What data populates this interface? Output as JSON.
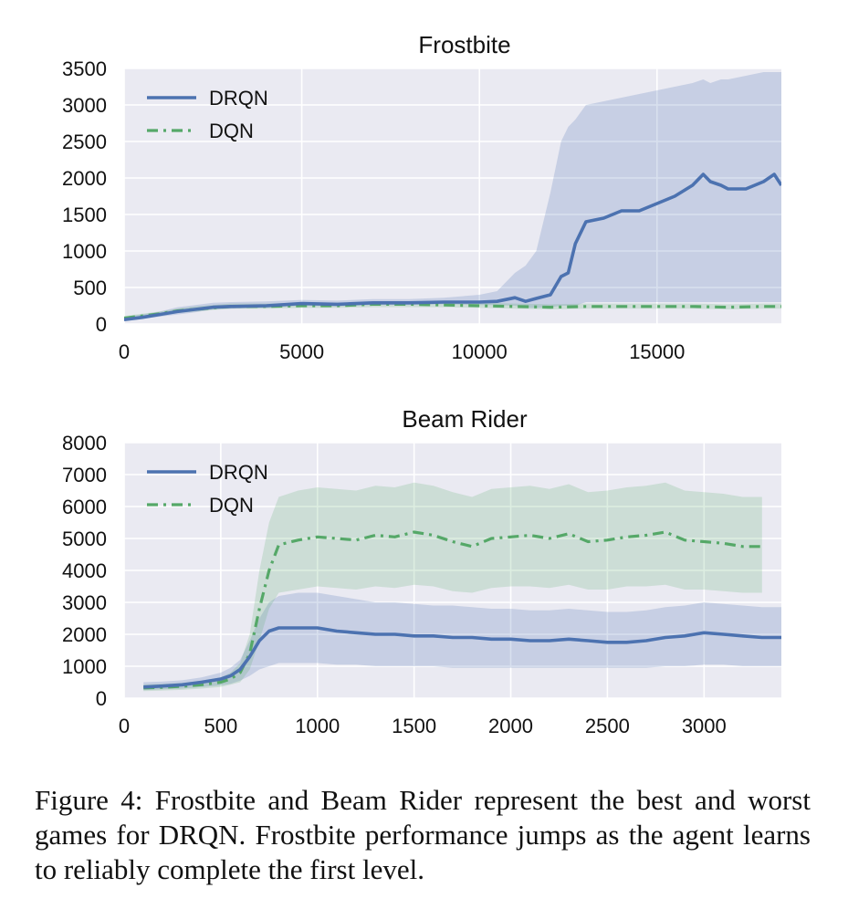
{
  "colors": {
    "background": "#eaeaf2",
    "grid": "#ffffff",
    "drqn": "#4c72b0",
    "dqn": "#55a868"
  },
  "chart_data": [
    {
      "type": "line",
      "title": "Frostbite",
      "xlabel": "",
      "ylabel": "",
      "xlim": [
        0,
        18500
      ],
      "ylim": [
        0,
        3500
      ],
      "xticks": [
        0,
        5000,
        10000,
        15000
      ],
      "yticks": [
        0,
        500,
        1000,
        1500,
        2000,
        2500,
        3000,
        3500
      ],
      "grid": true,
      "legend": {
        "placement": "top-left"
      },
      "series": [
        {
          "name": "DRQN",
          "style": "solid",
          "x": [
            0,
            500,
            1000,
            1500,
            2000,
            2500,
            3000,
            4000,
            5000,
            6000,
            7000,
            8000,
            9000,
            10000,
            10500,
            11000,
            11300,
            11600,
            12000,
            12300,
            12500,
            12700,
            13000,
            13500,
            14000,
            14500,
            15000,
            15500,
            16000,
            16300,
            16500,
            16800,
            17000,
            17500,
            18000,
            18300,
            18500
          ],
          "values": [
            60,
            90,
            130,
            170,
            200,
            230,
            240,
            250,
            280,
            270,
            290,
            290,
            300,
            300,
            310,
            360,
            310,
            350,
            400,
            650,
            700,
            1100,
            1400,
            1450,
            1550,
            1550,
            1650,
            1750,
            1900,
            2050,
            1950,
            1900,
            1850,
            1850,
            1950,
            2050,
            1900
          ],
          "band_low": [
            40,
            70,
            100,
            130,
            160,
            200,
            210,
            220,
            250,
            240,
            260,
            260,
            270,
            260,
            260,
            250,
            220,
            220,
            230,
            250,
            250,
            250,
            300,
            300,
            300,
            300,
            300,
            300,
            300,
            300,
            300,
            300,
            300,
            300,
            300,
            300,
            300
          ],
          "band_high": [
            100,
            130,
            170,
            230,
            260,
            290,
            300,
            310,
            330,
            320,
            340,
            340,
            360,
            400,
            450,
            700,
            800,
            1000,
            1800,
            2500,
            2700,
            2800,
            3000,
            3050,
            3100,
            3150,
            3200,
            3250,
            3300,
            3350,
            3300,
            3350,
            3350,
            3400,
            3450,
            3450,
            3450
          ]
        },
        {
          "name": "DQN",
          "style": "dashdot",
          "x": [
            0,
            500,
            1000,
            1500,
            2000,
            2500,
            3000,
            4000,
            5000,
            6000,
            7000,
            8000,
            9000,
            10000,
            11000,
            12000,
            13000,
            14000,
            15000,
            16000,
            17000,
            18000,
            18500
          ],
          "values": [
            80,
            110,
            140,
            180,
            200,
            220,
            240,
            240,
            250,
            250,
            270,
            270,
            260,
            250,
            240,
            230,
            240,
            240,
            240,
            240,
            230,
            240,
            240
          ],
          "band_low": [
            50,
            80,
            110,
            150,
            170,
            190,
            210,
            210,
            220,
            220,
            230,
            230,
            230,
            220,
            210,
            200,
            210,
            210,
            210,
            210,
            200,
            210,
            210
          ],
          "band_high": [
            110,
            140,
            170,
            210,
            240,
            260,
            280,
            280,
            290,
            290,
            300,
            300,
            300,
            290,
            280,
            270,
            280,
            280,
            280,
            280,
            270,
            280,
            280
          ]
        }
      ]
    },
    {
      "type": "line",
      "title": "Beam Rider",
      "xlabel": "",
      "ylabel": "",
      "xlim": [
        0,
        3400
      ],
      "ylim": [
        0,
        8000
      ],
      "xticks": [
        0,
        500,
        1000,
        1500,
        2000,
        2500,
        3000
      ],
      "yticks": [
        0,
        1000,
        2000,
        3000,
        4000,
        5000,
        6000,
        7000,
        8000
      ],
      "grid": true,
      "legend": {
        "placement": "top-left"
      },
      "series": [
        {
          "name": "DRQN",
          "style": "solid",
          "x": [
            100,
            200,
            300,
            400,
            500,
            550,
            600,
            650,
            700,
            750,
            800,
            900,
            1000,
            1100,
            1200,
            1300,
            1400,
            1500,
            1600,
            1700,
            1800,
            1900,
            2000,
            2100,
            2200,
            2300,
            2400,
            2500,
            2600,
            2700,
            2800,
            2900,
            3000,
            3100,
            3200,
            3300,
            3400
          ],
          "values": [
            350,
            380,
            420,
            500,
            600,
            700,
            900,
            1300,
            1800,
            2100,
            2200,
            2200,
            2200,
            2100,
            2050,
            2000,
            2000,
            1950,
            1950,
            1900,
            1900,
            1850,
            1850,
            1800,
            1800,
            1850,
            1800,
            1750,
            1750,
            1800,
            1900,
            1950,
            2050,
            2000,
            1950,
            1900,
            1900
          ],
          "band_low": [
            250,
            280,
            300,
            350,
            400,
            450,
            550,
            700,
            900,
            1000,
            1100,
            1100,
            1100,
            1050,
            1050,
            1000,
            1000,
            1000,
            1000,
            950,
            950,
            950,
            950,
            950,
            950,
            950,
            950,
            950,
            950,
            950,
            1000,
            1000,
            1050,
            1050,
            1000,
            1000,
            1000
          ],
          "band_high": [
            500,
            520,
            560,
            650,
            800,
            950,
            1200,
            1800,
            2500,
            3000,
            3200,
            3300,
            3300,
            3200,
            3100,
            3000,
            3000,
            2950,
            2900,
            2900,
            2850,
            2800,
            2800,
            2750,
            2750,
            2800,
            2750,
            2700,
            2700,
            2750,
            2850,
            2900,
            3000,
            2950,
            2900,
            2850,
            2850
          ]
        },
        {
          "name": "DQN",
          "style": "dashdot",
          "x": [
            100,
            200,
            300,
            400,
            500,
            550,
            600,
            650,
            700,
            750,
            800,
            900,
            1000,
            1100,
            1200,
            1300,
            1400,
            1500,
            1600,
            1700,
            1800,
            1900,
            2000,
            2100,
            2200,
            2300,
            2400,
            2500,
            2600,
            2700,
            2800,
            2900,
            3000,
            3100,
            3200,
            3300
          ],
          "values": [
            320,
            340,
            370,
            420,
            500,
            600,
            800,
            1400,
            2800,
            4000,
            4800,
            4950,
            5050,
            5000,
            4950,
            5100,
            5050,
            5200,
            5100,
            4900,
            4750,
            5000,
            5050,
            5100,
            5000,
            5150,
            4900,
            4950,
            5050,
            5100,
            5200,
            4950,
            4900,
            4850,
            4750,
            4750
          ],
          "band_low": [
            220,
            240,
            260,
            300,
            350,
            420,
            500,
            900,
            1800,
            2800,
            3300,
            3400,
            3500,
            3450,
            3400,
            3500,
            3450,
            3550,
            3500,
            3350,
            3300,
            3450,
            3500,
            3500,
            3450,
            3550,
            3400,
            3400,
            3500,
            3500,
            3550,
            3400,
            3400,
            3350,
            3300,
            3300
          ],
          "band_high": [
            430,
            450,
            480,
            550,
            650,
            800,
            1100,
            2000,
            4000,
            5500,
            6300,
            6500,
            6600,
            6550,
            6500,
            6650,
            6600,
            6750,
            6650,
            6450,
            6300,
            6550,
            6600,
            6650,
            6550,
            6700,
            6450,
            6500,
            6600,
            6650,
            6750,
            6500,
            6450,
            6400,
            6300,
            6300
          ]
        }
      ]
    }
  ],
  "caption": "Figure 4: Frostbite and Beam Rider represent the best and worst games for DRQN. Frostbite performance jumps as the agent learns to reliably complete the first level."
}
